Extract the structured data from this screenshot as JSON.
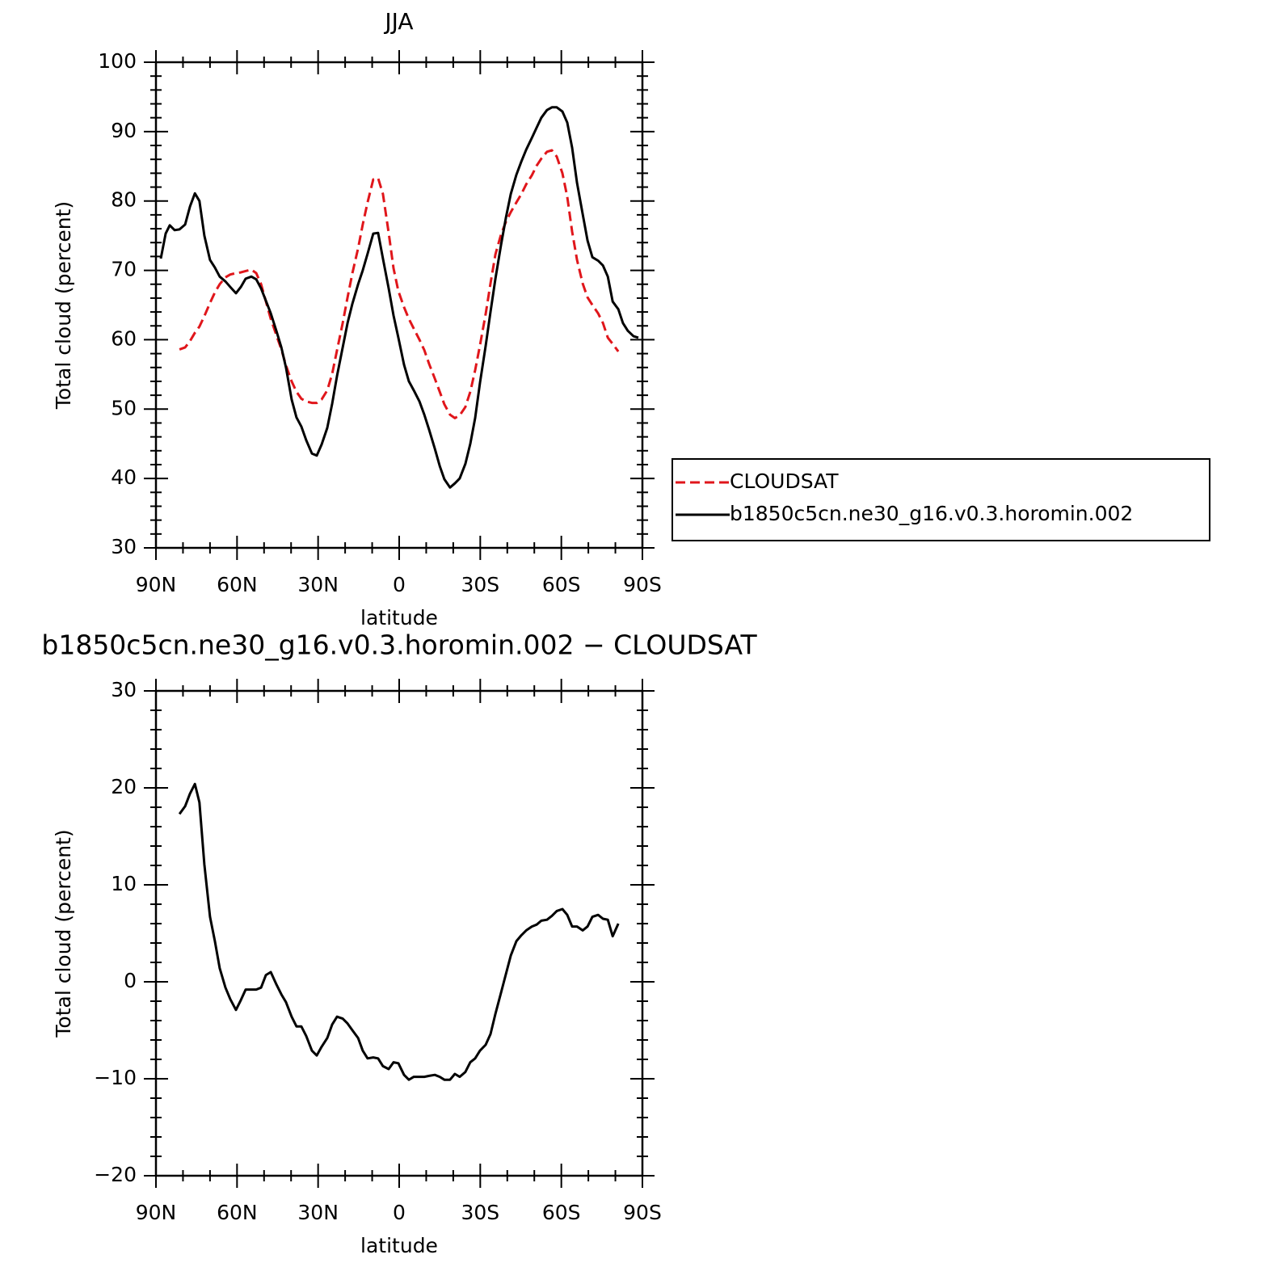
{
  "chart_data": [
    {
      "type": "line",
      "title": "JJA",
      "xlabel": "latitude",
      "ylabel": "Total cloud (percent)",
      "legend_position": "right",
      "xlim": [
        90,
        -90
      ],
      "xticks": [
        {
          "value": 90,
          "label": "90N"
        },
        {
          "value": 60,
          "label": "60N"
        },
        {
          "value": 30,
          "label": "30N"
        },
        0,
        {
          "value": -30,
          "label": "30S"
        },
        {
          "value": -60,
          "label": "60S"
        },
        {
          "value": -90,
          "label": "90S"
        }
      ],
      "xminorticks": [
        80,
        70,
        50,
        40,
        20,
        10,
        -10,
        -20,
        -40,
        -50,
        -70,
        -80
      ],
      "ylim": [
        30,
        100
      ],
      "yticks": [
        30,
        40,
        50,
        60,
        70,
        80,
        90,
        100
      ],
      "yminorticks": [
        32,
        34,
        36,
        38,
        42,
        44,
        46,
        48,
        52,
        54,
        56,
        58,
        62,
        64,
        66,
        68,
        72,
        74,
        76,
        78,
        82,
        84,
        86,
        88,
        92,
        94,
        96,
        98
      ],
      "x": [
        88.2,
        86.4,
        84.9,
        83.1,
        81.3,
        79.2,
        77.4,
        75.6,
        73.9,
        72.1,
        70.0,
        68.2,
        66.4,
        64.3,
        62.5,
        60.4,
        58.6,
        56.8,
        54.7,
        52.9,
        51.1,
        49.3,
        47.5,
        45.4,
        43.6,
        41.9,
        39.8,
        38.0,
        36.2,
        34.4,
        32.3,
        30.5,
        28.7,
        26.6,
        24.8,
        23.0,
        20.9,
        19.1,
        17.3,
        15.2,
        13.5,
        11.7,
        9.6,
        7.8,
        6.0,
        3.9,
        2.1,
        0.3,
        -1.8,
        -3.6,
        -5.4,
        -7.5,
        -9.3,
        -11.1,
        -13.2,
        -15.0,
        -16.7,
        -18.8,
        -20.6,
        -22.4,
        -24.5,
        -26.3,
        -28.1,
        -29.9,
        -32.0,
        -33.8,
        -35.6,
        -37.7,
        -39.5,
        -41.3,
        -43.4,
        -45.2,
        -47.0,
        -49.1,
        -50.9,
        -52.6,
        -54.7,
        -56.5,
        -58.3,
        -60.4,
        -62.2,
        -64.0,
        -65.8,
        -67.9,
        -69.7,
        -71.5,
        -73.6,
        -75.4,
        -77.2,
        -79.0,
        -81.1,
        -82.8,
        -84.6,
        -86.7,
        -88.5
      ],
      "series": [
        {
          "name": "CLOUDSAT",
          "color": "#e0161b",
          "linestyle": "dashed",
          "values": [
            null,
            null,
            null,
            null,
            58.6,
            58.9,
            59.8,
            61.0,
            61.9,
            63.4,
            65.3,
            66.8,
            68.0,
            69.0,
            69.4,
            69.6,
            69.7,
            69.9,
            70.1,
            69.6,
            68.0,
            65.5,
            63.0,
            60.6,
            58.6,
            56.3,
            54.0,
            52.5,
            51.5,
            51.1,
            50.9,
            50.9,
            51.4,
            52.7,
            55.1,
            58.5,
            62.4,
            66.1,
            69.6,
            73.2,
            76.6,
            79.8,
            83.1,
            83.3,
            81.0,
            75.4,
            70.3,
            67.0,
            64.7,
            63.0,
            61.6,
            60.0,
            58.5,
            56.5,
            54.4,
            52.5,
            50.7,
            49.2,
            48.7,
            49.1,
            50.3,
            52.5,
            55.6,
            59.2,
            63.7,
            68.1,
            72.3,
            75.2,
            77.0,
            78.4,
            79.8,
            81.0,
            82.4,
            83.7,
            85.1,
            86.1,
            87.1,
            87.3,
            86.4,
            84.0,
            80.6,
            75.6,
            71.5,
            68.1,
            66.1,
            65.0,
            63.8,
            62.4,
            60.3,
            59.4,
            58.3,
            null,
            null,
            null,
            null
          ]
        },
        {
          "name": "b1850c5cn.ne30_g16.v0.3.horomin.002",
          "color": "#000000",
          "linestyle": "solid",
          "values": [
            71.7,
            75.3,
            76.5,
            75.8,
            75.9,
            76.6,
            79.2,
            81.1,
            80.0,
            75.0,
            71.5,
            70.4,
            69.1,
            68.4,
            67.6,
            66.7,
            67.6,
            68.8,
            69.1,
            68.7,
            67.4,
            65.6,
            63.8,
            61.2,
            58.9,
            56.0,
            51.4,
            48.8,
            47.5,
            45.5,
            43.6,
            43.3,
            44.9,
            47.3,
            50.8,
            54.8,
            58.9,
            62.4,
            65.2,
            68.0,
            70.0,
            72.4,
            75.3,
            75.4,
            71.7,
            67.4,
            63.5,
            60.3,
            56.4,
            54.0,
            52.7,
            51.1,
            49.2,
            47.0,
            44.3,
            41.8,
            39.9,
            38.7,
            39.3,
            40.0,
            42.1,
            45.0,
            48.7,
            53.8,
            59.1,
            64.0,
            68.8,
            73.7,
            77.6,
            81.0,
            83.8,
            85.7,
            87.4,
            89.1,
            90.6,
            92.0,
            93.1,
            93.5,
            93.5,
            92.9,
            91.3,
            87.7,
            82.6,
            78.1,
            74.3,
            71.9,
            71.4,
            70.7,
            69.1,
            65.5,
            64.4,
            62.4,
            61.3,
            60.5,
            60.3
          ]
        }
      ]
    },
    {
      "type": "line",
      "title": "b1850c5cn.ne30_g16.v0.3.horomin.002 − CLOUDSAT",
      "xlabel": "latitude",
      "ylabel": "Total cloud (percent)",
      "xlim": [
        90,
        -90
      ],
      "xticks": [
        {
          "value": 90,
          "label": "90N"
        },
        {
          "value": 60,
          "label": "60N"
        },
        {
          "value": 30,
          "label": "30N"
        },
        0,
        {
          "value": -30,
          "label": "30S"
        },
        {
          "value": -60,
          "label": "60S"
        },
        {
          "value": -90,
          "label": "90S"
        }
      ],
      "xminorticks": [
        80,
        70,
        50,
        40,
        20,
        10,
        -10,
        -20,
        -40,
        -50,
        -70,
        -80
      ],
      "ylim": [
        -20,
        30
      ],
      "yticks": [
        {
          "value": -20,
          "label": "−20"
        },
        {
          "value": -10,
          "label": "−10"
        },
        0,
        10,
        20,
        30
      ],
      "yminorticks": [
        -18,
        -16,
        -14,
        -12,
        -8,
        -6,
        -4,
        -2,
        2,
        4,
        6,
        8,
        12,
        14,
        16,
        18,
        22,
        24,
        26,
        28
      ],
      "x": [
        88.2,
        86.4,
        84.9,
        83.1,
        81.3,
        79.2,
        77.4,
        75.6,
        73.9,
        72.1,
        70.0,
        68.2,
        66.4,
        64.3,
        62.5,
        60.4,
        58.6,
        56.8,
        54.7,
        52.9,
        51.1,
        49.3,
        47.5,
        45.4,
        43.6,
        41.9,
        39.8,
        38.0,
        36.2,
        34.4,
        32.3,
        30.5,
        28.7,
        26.6,
        24.8,
        23.0,
        20.9,
        19.1,
        17.3,
        15.2,
        13.5,
        11.7,
        9.6,
        7.8,
        6.0,
        3.9,
        2.1,
        0.3,
        -1.8,
        -3.6,
        -5.4,
        -7.5,
        -9.3,
        -11.1,
        -13.2,
        -15.0,
        -16.7,
        -18.8,
        -20.6,
        -22.4,
        -24.5,
        -26.3,
        -28.1,
        -29.9,
        -32.0,
        -33.8,
        -35.6,
        -37.7,
        -39.5,
        -41.3,
        -43.4,
        -45.2,
        -47.0,
        -49.1,
        -50.9,
        -52.6,
        -54.7,
        -56.5,
        -58.3,
        -60.4,
        -62.2,
        -64.0,
        -65.8,
        -67.9,
        -69.7,
        -71.5,
        -73.6,
        -75.4,
        -77.2,
        -79.0,
        -81.1,
        -82.8,
        -84.6,
        -86.7,
        -88.5
      ],
      "series": [
        {
          "color": "#000000",
          "linestyle": "solid",
          "values": [
            null,
            null,
            null,
            null,
            17.3,
            18.1,
            19.4,
            20.4,
            18.5,
            12.1,
            6.7,
            4.2,
            1.4,
            -0.6,
            -1.8,
            -2.9,
            -1.9,
            -0.8,
            -0.8,
            -0.8,
            -0.6,
            0.7,
            1.0,
            -0.3,
            -1.3,
            -2.1,
            -3.6,
            -4.6,
            -4.6,
            -5.6,
            -7.1,
            -7.6,
            -6.7,
            -5.8,
            -4.4,
            -3.6,
            -3.8,
            -4.3,
            -5.0,
            -5.8,
            -7.1,
            -7.9,
            -7.8,
            -7.9,
            -8.7,
            -9.0,
            -8.3,
            -8.4,
            -9.6,
            -10.1,
            -9.8,
            -9.8,
            -9.8,
            -9.7,
            -9.6,
            -9.8,
            -10.1,
            -10.1,
            -9.5,
            -9.8,
            -9.3,
            -8.3,
            -7.9,
            -7.1,
            -6.5,
            -5.4,
            -3.3,
            -1.1,
            0.8,
            2.7,
            4.2,
            4.8,
            5.3,
            5.7,
            5.9,
            6.3,
            6.4,
            6.8,
            7.3,
            7.5,
            6.9,
            5.7,
            5.7,
            5.3,
            5.7,
            6.7,
            6.9,
            6.5,
            6.4,
            4.7,
            6.0,
            null,
            null,
            null,
            null
          ]
        }
      ]
    }
  ]
}
